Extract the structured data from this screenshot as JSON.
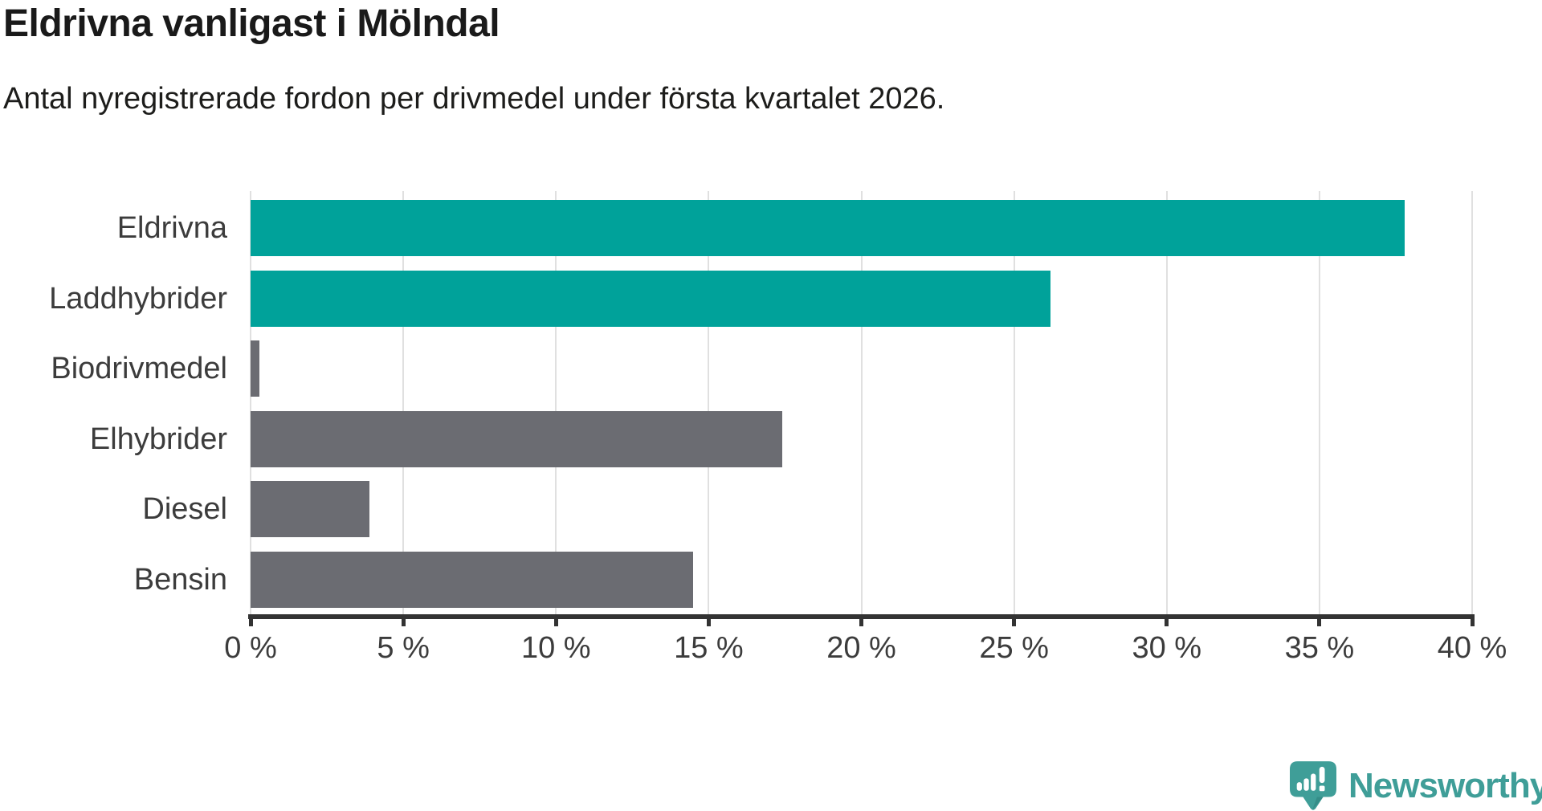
{
  "page": {
    "title": "Eldrivna vanligast i Mölndal",
    "subtitle": "Antal nyregistrerade fordon per drivmedel under första kvartalet 2026."
  },
  "chart_data": {
    "type": "bar",
    "orientation": "horizontal",
    "title": "Eldrivna vanligast i Mölndal",
    "subtitle": "Antal nyregistrerade fordon per drivmedel under första kvartalet 2026.",
    "categories": [
      "Eldrivna",
      "Laddhybrider",
      "Biodrivmedel",
      "Elhybrider",
      "Diesel",
      "Bensin"
    ],
    "values": [
      37.8,
      26.2,
      0.3,
      17.4,
      3.9,
      14.5
    ],
    "unit": "%",
    "bar_colors": [
      "#00a29a",
      "#00a29a",
      "#6b6c72",
      "#6b6c72",
      "#6b6c72",
      "#6b6c72"
    ],
    "highlight_color": "#00a29a",
    "base_color": "#6b6c72",
    "xlim": [
      0,
      40
    ],
    "x_ticks": [
      0,
      5,
      10,
      15,
      20,
      25,
      30,
      35,
      40
    ],
    "x_tick_suffix": " %",
    "xlabel": "",
    "ylabel": "",
    "grid": "vertical",
    "legend_position": "none"
  },
  "branding": {
    "logo_text": "Newsworthy",
    "logo_color": "#3f9e98",
    "logo_icon": "speech-bubble-bar-chart"
  },
  "colors": {
    "background": "#ffffff",
    "title_text": "#1a1a1a",
    "subtitle_text": "#1d1d1b",
    "axis_text": "#3c3c3c",
    "axis_line": "#333333",
    "gridline": "#e0e0e0"
  }
}
